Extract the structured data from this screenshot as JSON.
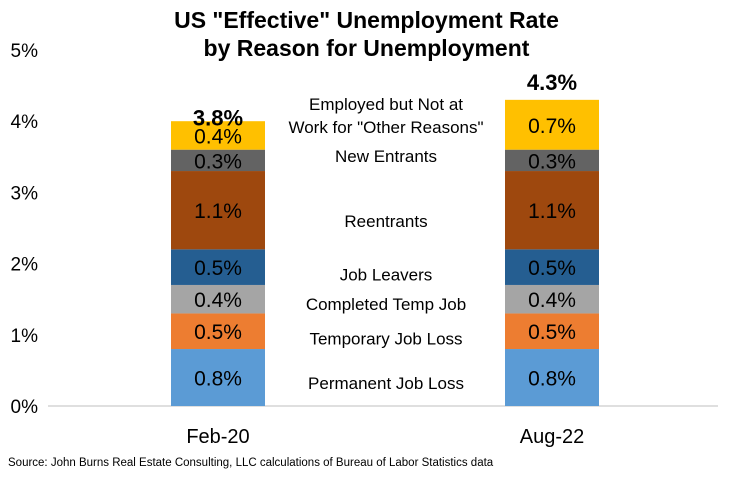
{
  "title_line1": "US \"Effective\" Unemployment Rate",
  "title_line2": "by Reason for Unemployment",
  "source": "Source: John Burns Real Estate Consulting, LLC calculations of Bureau of Labor Statistics data",
  "chart_data": {
    "type": "bar",
    "stacked": true,
    "categories": [
      "Feb-20",
      "Aug-22"
    ],
    "ylim": [
      0,
      5
    ],
    "y_ticks": [
      "0%",
      "1%",
      "2%",
      "3%",
      "4%",
      "5%"
    ],
    "grid": false,
    "series": [
      {
        "name": "Permanent Job Loss",
        "values": [
          0.8,
          0.8
        ],
        "labels": [
          "0.8%",
          "0.8%"
        ],
        "color": "#5B9BD5"
      },
      {
        "name": "Temporary Job Loss",
        "values": [
          0.5,
          0.5
        ],
        "labels": [
          "0.5%",
          "0.5%"
        ],
        "color": "#ED7D31"
      },
      {
        "name": "Completed Temp Job",
        "values": [
          0.4,
          0.4
        ],
        "labels": [
          "0.4%",
          "0.4%"
        ],
        "color": "#A5A5A5"
      },
      {
        "name": "Job Leavers",
        "values": [
          0.5,
          0.5
        ],
        "labels": [
          "0.5%",
          "0.5%"
        ],
        "color": "#255E91"
      },
      {
        "name": "Reentrants",
        "values": [
          1.1,
          1.1
        ],
        "labels": [
          "1.1%",
          "1.1%"
        ],
        "color": "#9E480E"
      },
      {
        "name": "New Entrants",
        "values": [
          0.3,
          0.3
        ],
        "labels": [
          "0.3%",
          "0.3%"
        ],
        "color": "#636363"
      },
      {
        "name": "Employed but Not at Work for \"Other Reasons\"",
        "name_lines": [
          "Employed but Not at",
          "Work for \"Other Reasons\""
        ],
        "values": [
          0.4,
          0.7
        ],
        "labels": [
          "0.4%",
          "0.7%"
        ],
        "color": "#FFC000"
      }
    ],
    "totals": [
      {
        "label": "3.8%",
        "value": 3.8
      },
      {
        "label": "4.3%",
        "value": 4.3
      }
    ]
  }
}
